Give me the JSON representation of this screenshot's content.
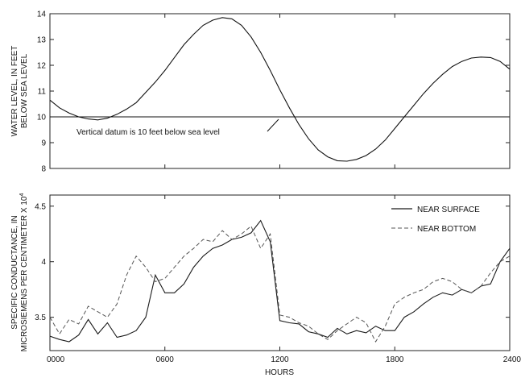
{
  "chart_data": [
    {
      "type": "line",
      "ylabel_lines": [
        "WATER LEVEL, IN FEET",
        "BELOW SEA LEVEL"
      ],
      "xlim": [
        0,
        24
      ],
      "ylim": [
        8,
        14
      ],
      "yticks": [
        8,
        9,
        10,
        11,
        12,
        13,
        14
      ],
      "reference_line": {
        "y": 10
      },
      "annotation": "Vertical datum is 10 feet below sea level",
      "grid": false,
      "series": [
        {
          "style": "solid",
          "x": [
            0,
            0.5,
            1,
            1.5,
            2,
            2.5,
            3,
            3.5,
            4,
            4.5,
            5,
            5.5,
            6,
            6.5,
            7,
            7.5,
            8,
            8.5,
            9,
            9.5,
            10,
            10.5,
            11,
            11.5,
            12,
            12.5,
            13,
            13.5,
            14,
            14.5,
            15,
            15.5,
            16,
            16.5,
            17,
            17.5,
            18,
            18.5,
            19,
            19.5,
            20,
            20.5,
            21,
            21.5,
            22,
            22.5,
            23,
            23.5,
            24
          ],
          "y": [
            10.65,
            10.35,
            10.15,
            10.0,
            9.92,
            9.88,
            9.95,
            10.1,
            10.3,
            10.55,
            10.95,
            11.35,
            11.8,
            12.3,
            12.8,
            13.2,
            13.55,
            13.75,
            13.85,
            13.8,
            13.55,
            13.1,
            12.5,
            11.8,
            11.05,
            10.35,
            9.7,
            9.15,
            8.72,
            8.45,
            8.3,
            8.28,
            8.35,
            8.5,
            8.75,
            9.1,
            9.55,
            10.0,
            10.45,
            10.9,
            11.3,
            11.65,
            11.95,
            12.15,
            12.28,
            12.32,
            12.3,
            12.15,
            11.85
          ]
        }
      ]
    },
    {
      "type": "line",
      "ylabel_lines": [
        "SPECIFIC CONDUCTANCE, IN",
        "MICROSIEMENS PER CENTIMETER X 10"
      ],
      "ylabel_exponent": "4",
      "xlabel": "HOURS",
      "xlim": [
        0,
        24
      ],
      "ylim": [
        3.2,
        4.6
      ],
      "yticks": [
        3.5,
        4,
        4.5
      ],
      "ytick_labels": [
        "3.5",
        "4",
        "4.5"
      ],
      "xticks": [
        0,
        6,
        12,
        18,
        24
      ],
      "xtick_labels": [
        "0000",
        "0600",
        "1200",
        "1800",
        "2400"
      ],
      "legend_position": "top-right",
      "grid": false,
      "series": [
        {
          "name": "NEAR SURFACE",
          "style": "solid",
          "x": [
            0,
            0.5,
            1,
            1.5,
            2,
            2.5,
            3,
            3.5,
            4,
            4.5,
            5,
            5.5,
            6,
            6.5,
            7,
            7.5,
            8,
            8.5,
            9,
            9.5,
            10,
            10.5,
            11,
            11.5,
            12,
            12.5,
            13,
            13.5,
            14,
            14.5,
            15,
            15.5,
            16,
            16.5,
            17,
            17.5,
            18,
            18.5,
            19,
            19.5,
            20,
            20.5,
            21,
            21.5,
            22,
            22.5,
            23,
            23.5,
            24
          ],
          "y": [
            3.33,
            3.3,
            3.28,
            3.34,
            3.48,
            3.35,
            3.45,
            3.32,
            3.34,
            3.38,
            3.5,
            3.88,
            3.72,
            3.72,
            3.8,
            3.95,
            4.05,
            4.12,
            4.15,
            4.2,
            4.22,
            4.26,
            4.37,
            4.18,
            3.47,
            3.45,
            3.44,
            3.37,
            3.35,
            3.32,
            3.4,
            3.35,
            3.38,
            3.36,
            3.42,
            3.38,
            3.38,
            3.5,
            3.55,
            3.62,
            3.68,
            3.72,
            3.7,
            3.75,
            3.72,
            3.78,
            3.8,
            4.0,
            4.12
          ]
        },
        {
          "name": "NEAR BOTTOM",
          "style": "dashed",
          "x": [
            0,
            0.5,
            1,
            1.5,
            2,
            2.5,
            3,
            3.5,
            4,
            4.5,
            5,
            5.5,
            6,
            6.5,
            7,
            7.5,
            8,
            8.5,
            9,
            9.5,
            10,
            10.5,
            11,
            11.5,
            12,
            12.5,
            13,
            13.5,
            14,
            14.5,
            15,
            15.5,
            16,
            16.5,
            17,
            17.5,
            18,
            18.5,
            19,
            19.5,
            20,
            20.5,
            21,
            21.5,
            22,
            22.5,
            23,
            23.5,
            24
          ],
          "y": [
            3.5,
            3.35,
            3.48,
            3.44,
            3.6,
            3.55,
            3.5,
            3.62,
            3.88,
            4.05,
            3.95,
            3.82,
            3.85,
            3.95,
            4.05,
            4.12,
            4.2,
            4.18,
            4.28,
            4.2,
            4.25,
            4.32,
            4.12,
            4.25,
            3.52,
            3.5,
            3.45,
            3.42,
            3.35,
            3.3,
            3.38,
            3.44,
            3.5,
            3.45,
            3.28,
            3.42,
            3.62,
            3.68,
            3.72,
            3.75,
            3.82,
            3.85,
            3.82,
            3.75,
            3.72,
            3.78,
            3.9,
            4.0,
            4.05
          ]
        }
      ]
    }
  ]
}
